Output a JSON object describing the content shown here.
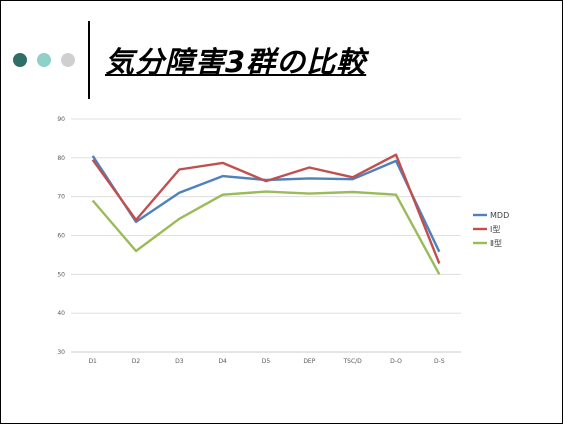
{
  "slide": {
    "title": "気分障害3群の比較",
    "bullet_colors": [
      "#2f6f67",
      "#8fd0c9",
      "#cfcfcf"
    ]
  },
  "chart_data": {
    "type": "line",
    "title": "",
    "xlabel": "",
    "ylabel": "",
    "categories": [
      "D1",
      "D2",
      "D3",
      "D4",
      "D5",
      "DEP",
      "TSC/D",
      "D-O",
      "D-S"
    ],
    "ylim": [
      30,
      90
    ],
    "yticks": [
      30,
      40,
      50,
      60,
      70,
      80,
      90
    ],
    "grid": true,
    "legend_position": "right",
    "series": [
      {
        "name": "MDD",
        "color": "#4f81bd",
        "values": [
          80.5,
          63.5,
          71,
          75.3,
          74.3,
          74.7,
          74.5,
          79.2,
          55.8
        ]
      },
      {
        "name": "Ⅰ型",
        "color": "#c0504d",
        "values": [
          79.5,
          64,
          77,
          78.7,
          74,
          77.5,
          75,
          80.8,
          52.8
        ]
      },
      {
        "name": "Ⅱ型",
        "color": "#9bbb59",
        "values": [
          69,
          56,
          64.3,
          70.5,
          71.3,
          70.8,
          71.2,
          70.5,
          50
        ]
      }
    ]
  }
}
